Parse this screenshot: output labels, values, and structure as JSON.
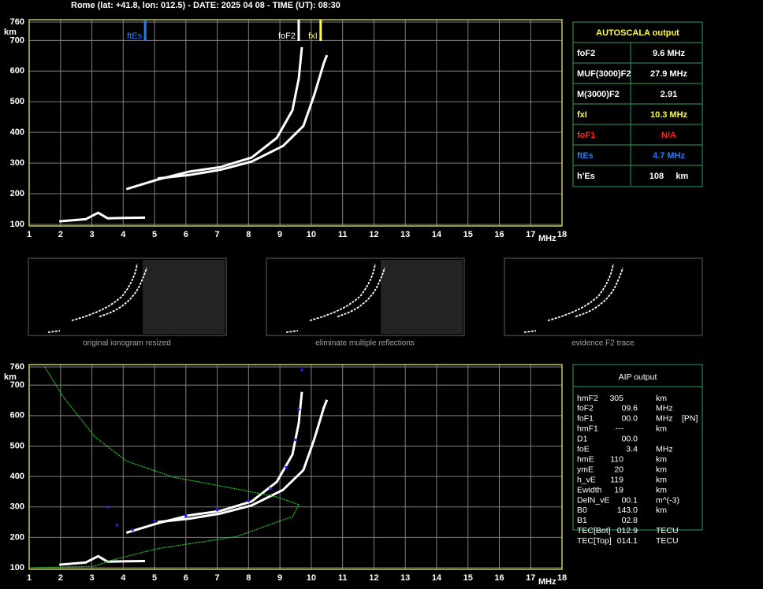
{
  "header": {
    "title": "Rome (lat: +41.8, lon: 012.5) - DATE: 2025 04 08 - TIME (UT): 08:30"
  },
  "chart_data": [
    {
      "type": "ionogram",
      "xlabel": "MHz",
      "ylabel": "km",
      "xlim": [
        1,
        18
      ],
      "ylim": [
        100,
        760
      ],
      "xticks": [
        1,
        2,
        3,
        4,
        5,
        6,
        7,
        8,
        9,
        10,
        11,
        12,
        13,
        14,
        15,
        16,
        17,
        18
      ],
      "yticks": [
        100,
        200,
        300,
        400,
        500,
        600,
        700,
        760
      ],
      "grid": true,
      "markers": [
        {
          "label": "ftEs",
          "x": 4.7,
          "color": "#1e7fff"
        },
        {
          "label": "foF2",
          "x": 9.6,
          "color": "#ffffff"
        },
        {
          "label": "fxI",
          "x": 10.3,
          "color": "#ffff40"
        }
      ],
      "series": [
        {
          "color": "#ffffff",
          "style": "line",
          "x": [
            1.96,
            2.8,
            3.2,
            3.5,
            4.0,
            4.7
          ],
          "values": [
            110,
            117,
            138,
            120,
            121,
            122
          ]
        },
        {
          "color": "#ffffff",
          "style": "line",
          "x": [
            4.1,
            5.1,
            6.1,
            7.1,
            8.1,
            8.9,
            9.4,
            9.6,
            9.7
          ],
          "values": [
            215,
            246,
            272,
            287,
            318,
            382,
            472,
            575,
            678
          ]
        },
        {
          "color": "#ffffff",
          "style": "line",
          "x": [
            5.1,
            6.1,
            7.1,
            8.1,
            9.1,
            9.75,
            10.1,
            10.4,
            10.5
          ],
          "values": [
            250,
            261,
            278,
            305,
            356,
            421,
            524,
            626,
            652
          ]
        }
      ]
    },
    {
      "type": "ionogram",
      "xlabel": "MHz",
      "ylabel": "km",
      "xlim": [
        1,
        18
      ],
      "ylim": [
        100,
        760
      ],
      "xticks": [
        1,
        2,
        3,
        4,
        5,
        6,
        7,
        8,
        9,
        10,
        11,
        12,
        13,
        14,
        15,
        16,
        17,
        18
      ],
      "yticks": [
        100,
        200,
        300,
        400,
        500,
        600,
        700,
        760
      ],
      "grid": true,
      "series": [
        {
          "color": "#ffffff",
          "style": "line",
          "x": [
            1.96,
            2.8,
            3.2,
            3.5,
            4.0,
            4.7
          ],
          "values": [
            110,
            117,
            138,
            120,
            121,
            122
          ]
        },
        {
          "color": "#ffffff",
          "style": "line",
          "x": [
            4.1,
            5.1,
            6.1,
            7.1,
            8.1,
            8.9,
            9.4,
            9.6,
            9.7
          ],
          "values": [
            215,
            246,
            272,
            287,
            318,
            382,
            472,
            575,
            678
          ]
        },
        {
          "color": "#ffffff",
          "style": "line",
          "x": [
            5.1,
            6.1,
            7.1,
            8.1,
            9.1,
            9.75,
            10.1,
            10.4,
            10.5
          ],
          "values": [
            250,
            261,
            278,
            305,
            356,
            421,
            524,
            626,
            652
          ]
        },
        {
          "color": "#2222ff",
          "style": "dots",
          "x": [
            3.5,
            3.8,
            4.3,
            5.0,
            6.0,
            7.0,
            8.0,
            8.7,
            9.2,
            9.5,
            9.6,
            9.7
          ],
          "values": [
            300,
            240,
            225,
            255,
            270,
            290,
            320,
            360,
            430,
            520,
            620,
            750
          ]
        },
        {
          "color": "#22cc22",
          "style": "line",
          "x": [
            1.5,
            2.1,
            3.1,
            4.1,
            5.6,
            7.6,
            8.9,
            9.6,
            9.4,
            7.6,
            5.1,
            3.6,
            3.1,
            1.1
          ],
          "values": [
            760,
            660,
            530,
            451,
            398,
            359,
            333,
            307,
            268,
            202,
            163,
            124,
            105,
            100
          ]
        }
      ]
    }
  ],
  "thumbnails": [
    "original ionogram resized",
    "eliminate multiple reflections",
    "evidence F2 trace"
  ],
  "autoscala": {
    "title": "AUTOSCALA output",
    "rows": [
      {
        "label": "foF2",
        "value": "9.6 MHz",
        "color": "#ffffff"
      },
      {
        "label": "MUF(3000)F2",
        "value": "27.9 MHz",
        "color": "#ffffff"
      },
      {
        "label": "M(3000)F2",
        "value": "2.91",
        "color": "#ffffff"
      },
      {
        "label": "fxI",
        "value": "10.3 MHz",
        "color": "#ffff40"
      },
      {
        "label": "foF1",
        "value": "N/A",
        "color": "#ff2020"
      },
      {
        "label": "ftEs",
        "value": "4.7 MHz",
        "color": "#1e7fff"
      },
      {
        "label": "h'Es",
        "value": "108     km",
        "color": "#ffffff"
      }
    ]
  },
  "aip": {
    "title": "AIP output",
    "rows": [
      [
        "hmF2",
        "305",
        "km",
        ""
      ],
      [
        "foF2",
        "09.6",
        "MHz",
        ""
      ],
      [
        "foF1",
        "00.0",
        "MHz",
        "[PN]"
      ],
      [
        "hmF1",
        "---",
        "km",
        ""
      ],
      [
        "D1",
        "00.0",
        "",
        ""
      ],
      [
        "foE",
        "3.4",
        "MHz",
        ""
      ],
      [
        "hmE",
        "110",
        "km",
        ""
      ],
      [
        "ymE",
        "20",
        "km",
        ""
      ],
      [
        "h_vE",
        "119",
        "km",
        ""
      ],
      [
        "Ewidth",
        "19",
        "km",
        ""
      ],
      [
        "DelN_vE",
        "00.1",
        "m^(-3)",
        ""
      ],
      [
        "B0",
        "143.0",
        "km",
        ""
      ],
      [
        "B1",
        "02.8",
        "",
        ""
      ],
      [
        "TEC[Bot]",
        "012.9",
        "TECU",
        ""
      ],
      [
        "TEC[Top]",
        "014.1",
        "TECU",
        ""
      ]
    ]
  }
}
